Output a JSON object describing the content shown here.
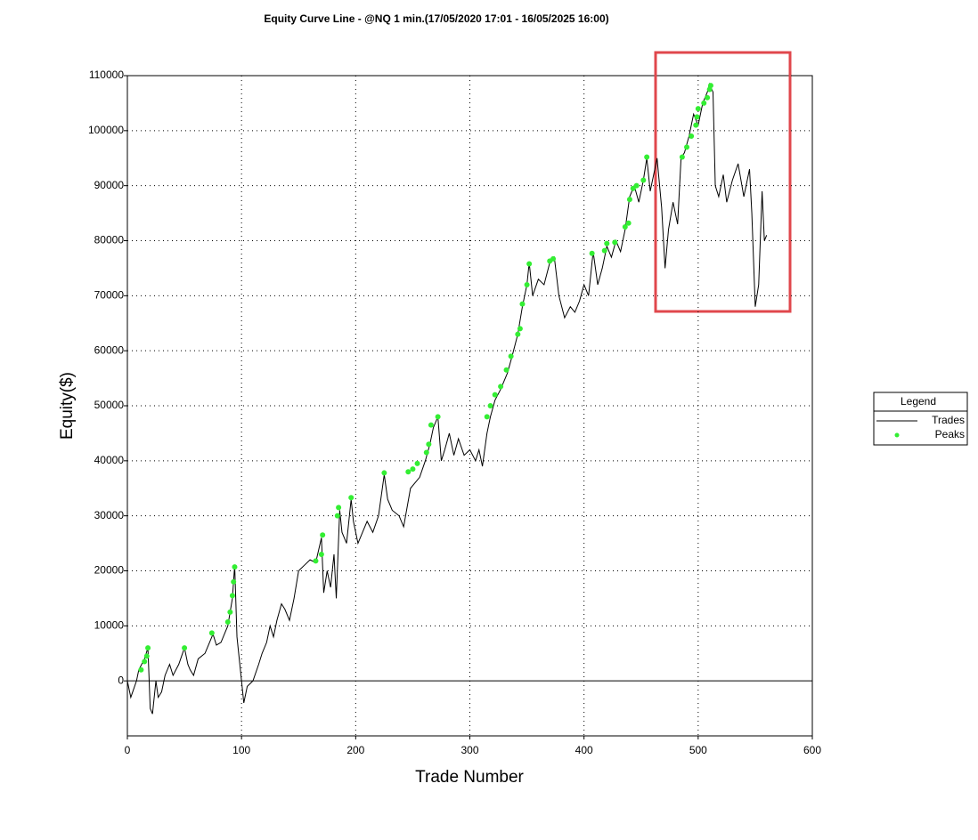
{
  "chart_data": {
    "type": "line",
    "title": "Equity Curve Line - @NQ 1 min.(17/05/2020 17:01 - 16/05/2025 16:00)",
    "x_label": "Trade Number",
    "y_label": "Equity($)",
    "legend_title": "Legend",
    "legend": "right",
    "grid": true,
    "xlim": [
      0,
      600
    ],
    "xticks": [
      0,
      100,
      200,
      300,
      400,
      500,
      600
    ],
    "ylim": [
      -10000,
      110000
    ],
    "yticks": [
      0,
      10000,
      20000,
      30000,
      40000,
      50000,
      60000,
      70000,
      80000,
      90000,
      100000,
      110000
    ],
    "series": [
      {
        "name": "Trades",
        "kind": "line",
        "color": "#000000",
        "x": [
          0,
          3,
          8,
          10,
          15,
          18,
          20,
          22,
          25,
          27,
          30,
          33,
          37,
          40,
          45,
          50,
          53,
          55,
          58,
          62,
          68,
          72,
          75,
          78,
          82,
          88,
          92,
          94,
          96,
          100,
          102,
          105,
          110,
          115,
          118,
          122,
          125,
          128,
          131,
          135,
          138,
          142,
          146,
          150,
          155,
          160,
          165,
          170,
          172,
          175,
          178,
          181,
          183,
          186,
          188,
          192,
          196,
          198,
          202,
          206,
          210,
          215,
          220,
          225,
          228,
          232,
          238,
          242,
          248,
          252,
          256,
          261,
          265,
          268,
          272,
          275,
          278,
          282,
          286,
          290,
          295,
          300,
          305,
          308,
          311,
          315,
          318,
          322,
          327,
          333,
          337,
          342,
          346,
          350,
          352,
          355,
          360,
          365,
          370,
          374,
          378,
          383,
          388,
          392,
          396,
          400,
          404,
          408,
          412,
          416,
          420,
          424,
          428,
          432,
          436,
          440,
          444,
          448,
          452,
          455,
          458,
          461,
          464,
          468,
          471,
          474,
          478,
          482,
          485,
          488,
          492,
          496,
          500,
          504,
          508,
          510,
          513,
          515,
          518,
          522,
          525,
          530,
          535,
          540,
          545,
          547,
          550,
          553,
          556,
          558,
          560
        ],
        "values": [
          0,
          -3000,
          0,
          2000,
          4000,
          6000,
          -5000,
          -6000,
          0,
          -3000,
          -2000,
          1000,
          3000,
          1000,
          3000,
          6000,
          3000,
          2000,
          1000,
          4000,
          5000,
          7000,
          8500,
          6500,
          7000,
          10000,
          15000,
          21000,
          8000,
          0,
          -4000,
          -1000,
          0,
          3000,
          5000,
          7000,
          10000,
          8000,
          11000,
          14000,
          13000,
          11000,
          15000,
          20000,
          21000,
          22000,
          21500,
          26000,
          16000,
          20000,
          17000,
          23000,
          15000,
          31000,
          27000,
          25000,
          33000,
          29000,
          25000,
          27000,
          29000,
          27000,
          30000,
          37500,
          33000,
          31000,
          30000,
          28000,
          35000,
          36000,
          37000,
          40000,
          43000,
          46000,
          48000,
          40000,
          42000,
          45000,
          41000,
          44000,
          41000,
          42000,
          40000,
          42000,
          39000,
          45000,
          48000,
          51000,
          53000,
          56000,
          59000,
          63000,
          68000,
          72000,
          76000,
          70000,
          73000,
          72000,
          76000,
          77000,
          70000,
          66000,
          68000,
          67000,
          69000,
          72000,
          70000,
          78000,
          72000,
          75000,
          79000,
          77000,
          80000,
          78000,
          82000,
          88000,
          90000,
          87000,
          91000,
          95000,
          89000,
          92000,
          95000,
          86000,
          75000,
          82000,
          87000,
          83000,
          95000,
          96000,
          99000,
          103000,
          101000,
          105000,
          107000,
          108500,
          107000,
          90000,
          88000,
          92000,
          87000,
          91000,
          94000,
          88000,
          93000,
          85000,
          68000,
          72000,
          89000,
          80000,
          81000
        ]
      },
      {
        "name": "Peaks",
        "kind": "scatter",
        "color": "#33ee33",
        "x": [
          12,
          15,
          17,
          18,
          50,
          74,
          88,
          90,
          92,
          93,
          94,
          165,
          170,
          171,
          184,
          185,
          196,
          225,
          246,
          250,
          254,
          262,
          264,
          266,
          272,
          315,
          318,
          322,
          327,
          332,
          336,
          342,
          344,
          346,
          350,
          352,
          370,
          373,
          407,
          418,
          420,
          427,
          436,
          439,
          440,
          443,
          446,
          452,
          455,
          486,
          490,
          494,
          498,
          499,
          500,
          505,
          508,
          510,
          511
        ],
        "values": [
          2000,
          3500,
          4500,
          6000,
          6000,
          8700,
          10700,
          12500,
          15500,
          18000,
          20700,
          21800,
          23000,
          26500,
          30000,
          31500,
          33300,
          37800,
          38000,
          38500,
          39500,
          41500,
          43000,
          46500,
          48000,
          48000,
          50000,
          52000,
          53500,
          56500,
          59000,
          63000,
          64000,
          68500,
          72000,
          75800,
          76300,
          76700,
          77700,
          78200,
          79500,
          79700,
          82500,
          83200,
          87500,
          89500,
          90000,
          91000,
          95200,
          95200,
          97000,
          99000,
          101000,
          102500,
          104000,
          105000,
          106000,
          107500,
          108200
        ]
      }
    ]
  }
}
